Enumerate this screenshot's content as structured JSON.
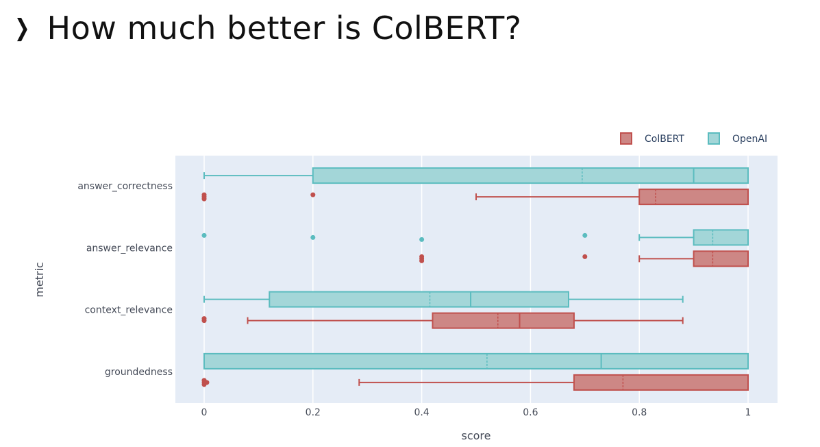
{
  "slide": {
    "chevron": "❯",
    "title": "How much better is ColBERT?"
  },
  "chart_data": {
    "type": "box",
    "orientation": "horizontal",
    "xlabel": "score",
    "ylabel": "metric",
    "xlim": [
      -0.05,
      1.05
    ],
    "xticks": [
      0,
      0.2,
      0.4,
      0.6,
      0.8,
      1
    ],
    "xtick_labels": [
      "0",
      "0.2",
      "0.4",
      "0.6",
      "0.8",
      "1"
    ],
    "categories": [
      "answer_correctness",
      "answer_relevance",
      "context_relevance",
      "groundedness"
    ],
    "grid": true,
    "legend_position": "top-right",
    "series": [
      {
        "name": "ColBERT",
        "color": "#c0504d",
        "fill": "#cd8785",
        "boxes": [
          {
            "category": "answer_correctness",
            "whisker_low": 0.5,
            "q1": 0.8,
            "median": 1.0,
            "mean": 0.83,
            "q3": 1.0,
            "whisker_high": 1.0,
            "outliers": [
              0,
              0,
              0,
              0.2
            ]
          },
          {
            "category": "answer_relevance",
            "whisker_low": 0.8,
            "q1": 0.9,
            "median": 1.0,
            "mean": 0.935,
            "q3": 1.0,
            "whisker_high": 1.0,
            "outliers": [
              0.4,
              0.4,
              0.4,
              0.7
            ]
          },
          {
            "category": "context_relevance",
            "whisker_low": 0.08,
            "q1": 0.42,
            "median": 0.58,
            "mean": 0.54,
            "q3": 0.68,
            "whisker_high": 0.88,
            "outliers": [
              0,
              0
            ]
          },
          {
            "category": "groundedness",
            "whisker_low": 0.285,
            "q1": 0.68,
            "median": 1.0,
            "mean": 0.77,
            "q3": 1.0,
            "whisker_high": 1.0,
            "outliers": [
              0,
              0,
              0,
              0,
              0.005
            ]
          }
        ]
      },
      {
        "name": "OpenAI",
        "color": "#5bbcbf",
        "fill": "#a3d6d8",
        "boxes": [
          {
            "category": "answer_correctness",
            "whisker_low": 0,
            "q1": 0.2,
            "median": 0.9,
            "mean": 0.695,
            "q3": 1.0,
            "whisker_high": 1.0,
            "outliers": []
          },
          {
            "category": "answer_relevance",
            "whisker_low": 0.8,
            "q1": 0.9,
            "median": 1.0,
            "mean": 0.935,
            "q3": 1.0,
            "whisker_high": 1.0,
            "outliers": [
              0,
              0.2,
              0.4,
              0.7
            ]
          },
          {
            "category": "context_relevance",
            "whisker_low": 0,
            "q1": 0.12,
            "median": 0.49,
            "mean": 0.415,
            "q3": 0.67,
            "whisker_high": 0.88,
            "outliers": []
          },
          {
            "category": "groundedness",
            "whisker_low": 0,
            "q1": 0,
            "median": 0.73,
            "mean": 0.52,
            "q3": 1.0,
            "whisker_high": 1.0,
            "outliers": []
          }
        ]
      }
    ]
  }
}
